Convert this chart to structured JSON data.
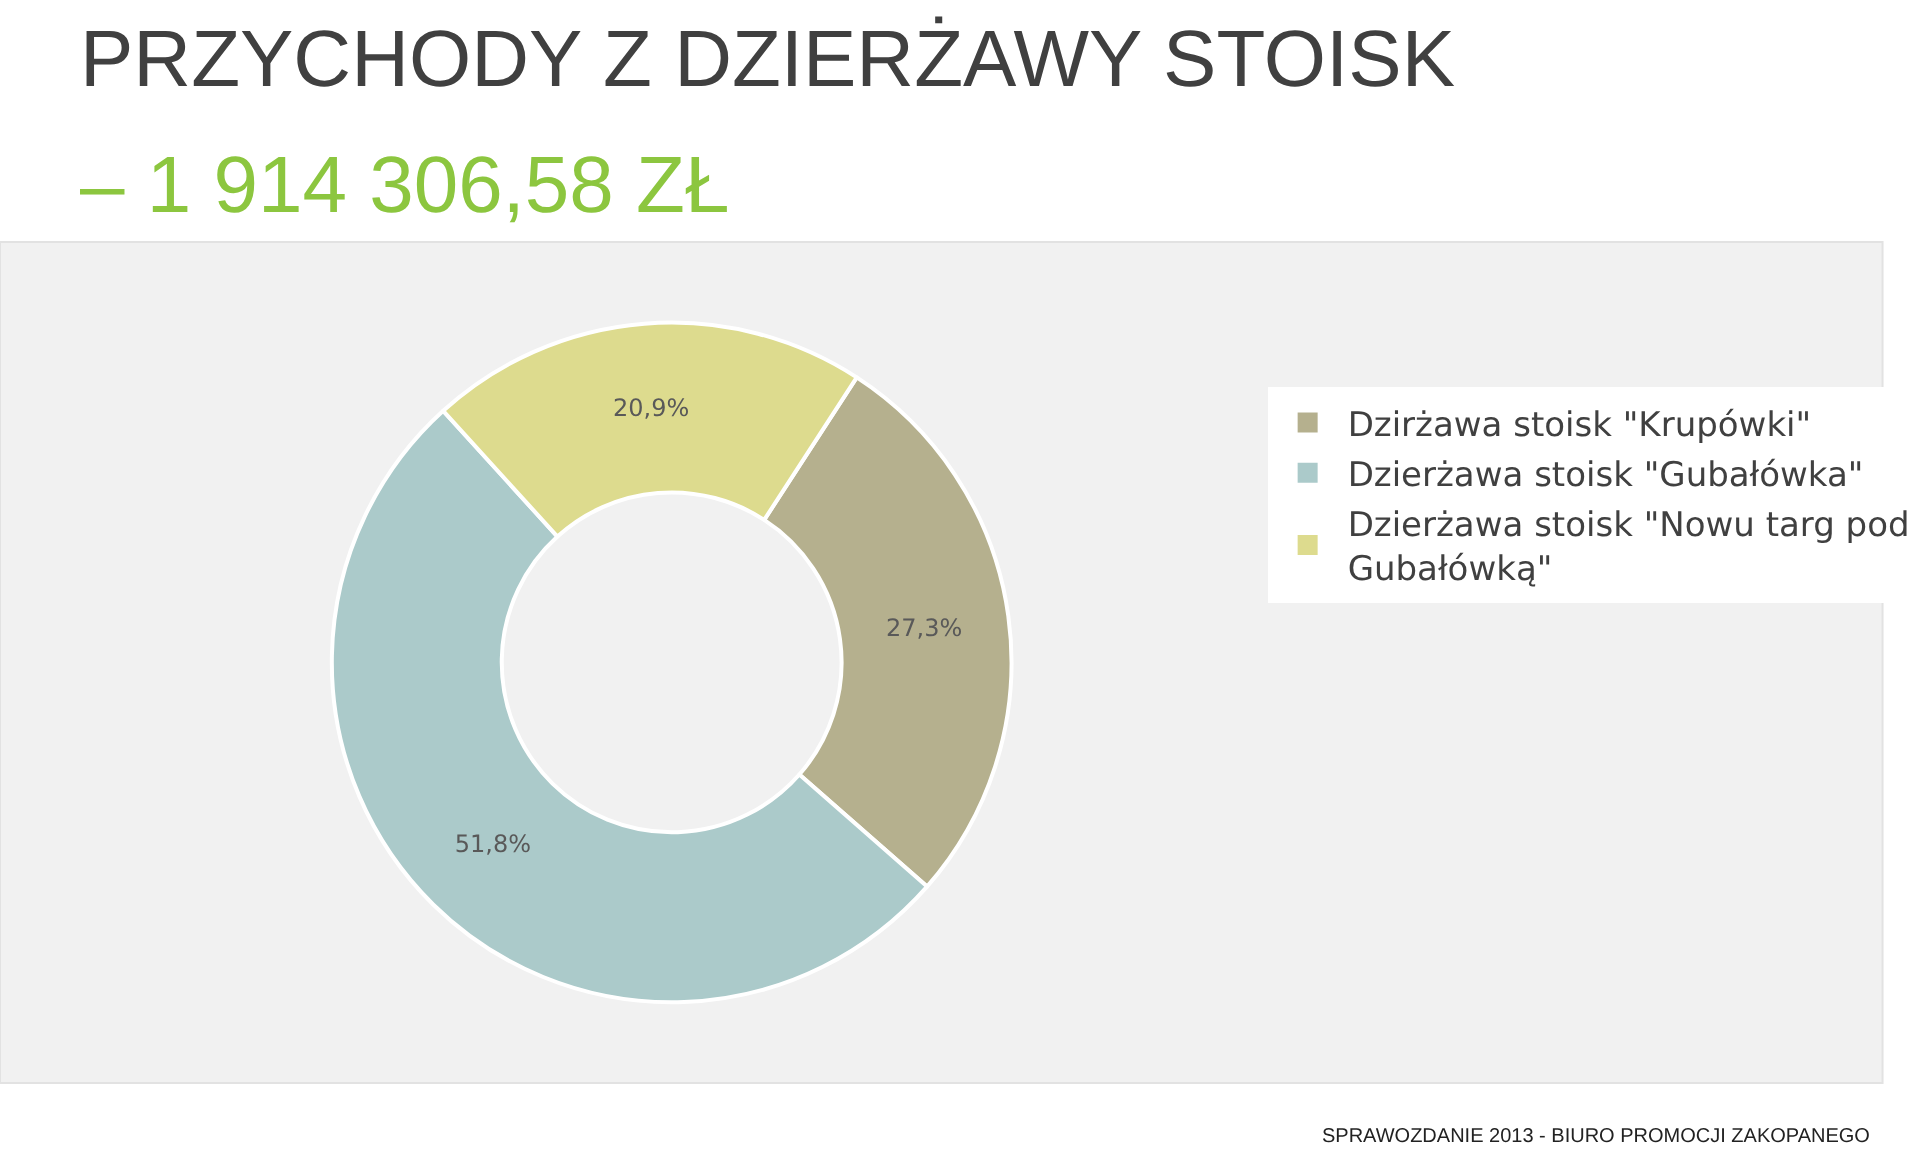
{
  "chart_data": {
    "type": "donut",
    "title": "PRZYCHODY Z DZIERŻAWY STOISK",
    "subtitle": "– 1 914 306,58 ZŁ",
    "categories": [
      "Dzirżawa stoisk \"Krupówki\"",
      "Dzierżawa stoisk \"Gubałówka\"",
      "Dzierżawa stoisk \"Nowu targ pod Gubałówką\""
    ],
    "values": [
      27.3,
      51.8,
      20.9
    ],
    "value_labels": [
      "27,3%",
      "51,8%",
      "20,9%"
    ],
    "colors": [
      "#b5b08e",
      "#abcaca",
      "#dddb8e"
    ],
    "legend": "right",
    "annotations": [
      "SPRAWOZDANIE 2013 - BIURO PROMOCJI ZAKOPANEGO"
    ]
  }
}
